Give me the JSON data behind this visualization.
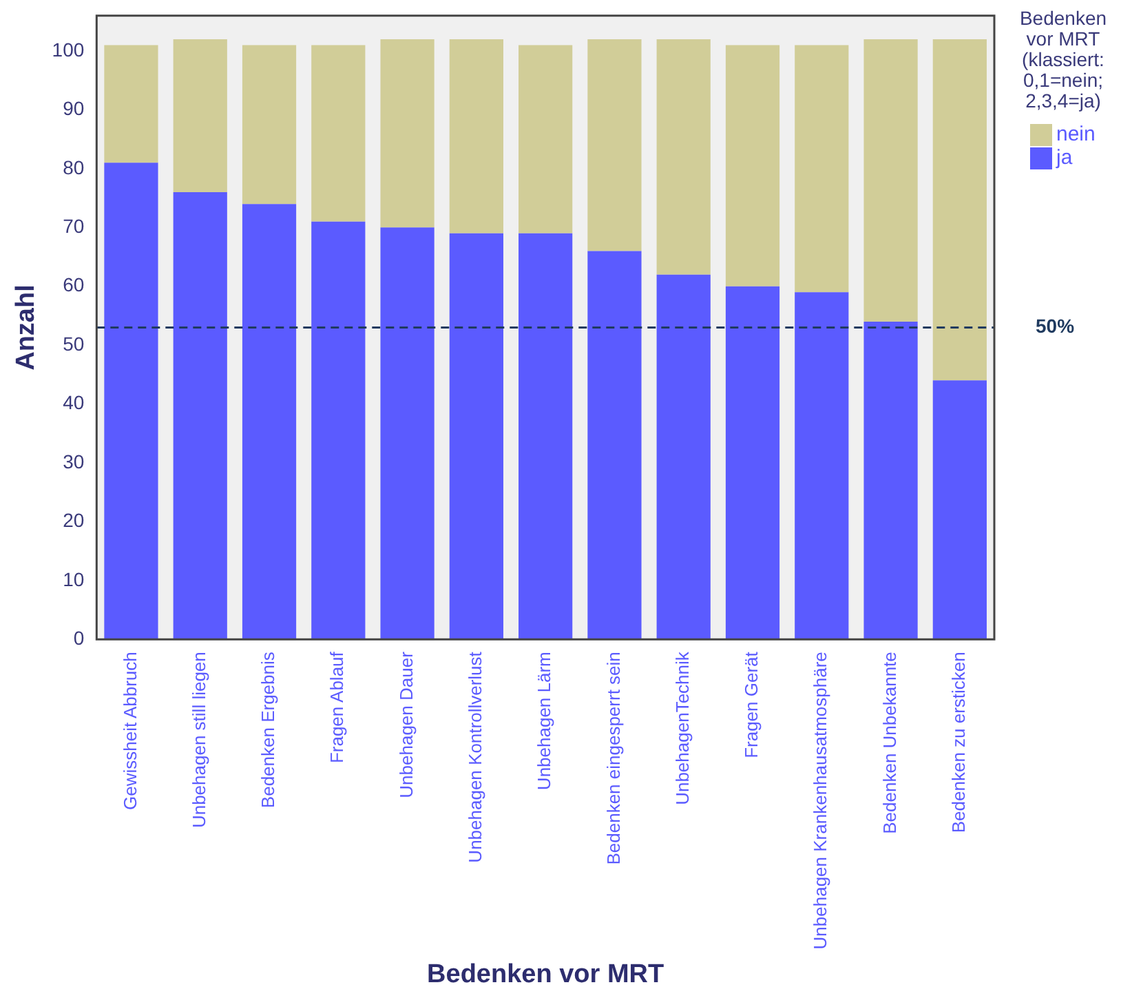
{
  "chart_data": {
    "type": "bar",
    "stacked": true,
    "xlabel": "Bedenken vor MRT",
    "ylabel": "Anzahl",
    "legend_title": "Bedenken vor MRT (klassiert: 0,1=nein; 2,3,4=ja)",
    "legend": "top right",
    "grid": false,
    "categories": [
      "Gewissheit Abbruch",
      "Unbehagen still liegen",
      "Bedenken Ergebnis",
      "Fragen Ablauf",
      "Unbehagen Dauer",
      "Unbehagen Kontrollverlust",
      "Unbehagen Lärm",
      "Bedenken eingesperrt sein",
      "UnbehagenTechnik",
      "Fragen Gerät",
      "Unbehagen Krankenhausatmosphäre",
      "Bedenken Unbekannte",
      "Bedenken zu ersticken"
    ],
    "series": [
      {
        "name": "ja",
        "color": "#5b5bff",
        "values": [
          81,
          76,
          74,
          71,
          70,
          69,
          69,
          66,
          62,
          60,
          59,
          54,
          44
        ]
      },
      {
        "name": "nein",
        "color": "#d1cd98",
        "values": [
          20,
          26,
          27,
          30,
          32,
          33,
          32,
          36,
          40,
          41,
          42,
          48,
          58
        ]
      }
    ],
    "ylim": [
      0,
      106
    ],
    "yticks": [
      0,
      10,
      20,
      30,
      40,
      50,
      60,
      70,
      80,
      90,
      100
    ],
    "ref_lines": [
      {
        "axis": "y",
        "value": 53,
        "color": "#1f3a5f",
        "line_style": "dashed"
      }
    ],
    "annotations": [
      "50%"
    ]
  }
}
